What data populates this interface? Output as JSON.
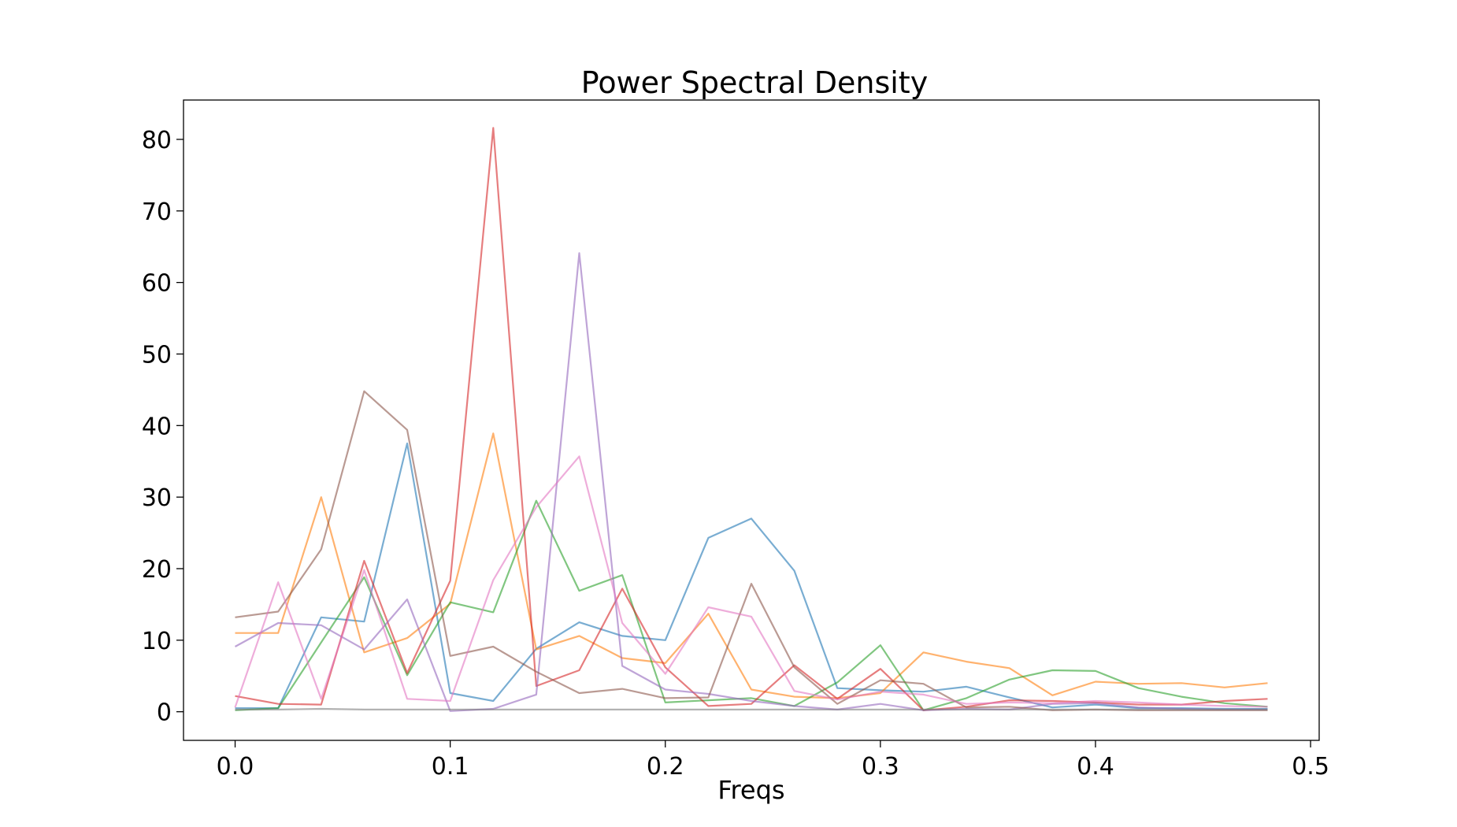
{
  "chart_data": {
    "type": "line",
    "title": "Power Spectral Density",
    "xlabel": "Freqs",
    "ylabel": "",
    "xlim": [
      -0.024,
      0.504
    ],
    "ylim": [
      -4,
      85.5
    ],
    "xticks": [
      {
        "value": 0.0,
        "label": "0.0"
      },
      {
        "value": 0.1,
        "label": "0.1"
      },
      {
        "value": 0.2,
        "label": "0.2"
      },
      {
        "value": 0.3,
        "label": "0.3"
      },
      {
        "value": 0.4,
        "label": "0.4"
      },
      {
        "value": 0.5,
        "label": "0.5"
      }
    ],
    "yticks": [
      {
        "value": 0,
        "label": "0"
      },
      {
        "value": 10,
        "label": "10"
      },
      {
        "value": 20,
        "label": "20"
      },
      {
        "value": 30,
        "label": "30"
      },
      {
        "value": 40,
        "label": "40"
      },
      {
        "value": 50,
        "label": "50"
      },
      {
        "value": 60,
        "label": "60"
      },
      {
        "value": 70,
        "label": "70"
      },
      {
        "value": 80,
        "label": "80"
      }
    ],
    "grid": false,
    "legend": "none",
    "x": [
      0.0,
      0.02,
      0.04,
      0.06,
      0.08,
      0.1,
      0.12,
      0.14,
      0.16,
      0.18,
      0.2,
      0.22,
      0.24,
      0.26,
      0.28,
      0.3,
      0.32,
      0.34,
      0.36,
      0.38,
      0.4,
      0.42,
      0.44,
      0.46,
      0.48
    ],
    "series": [
      {
        "color": "#1f77b4",
        "values": [
          0.5,
          0.5,
          13.2,
          12.6,
          37.5,
          2.6,
          1.5,
          8.8,
          12.5,
          10.6,
          10.0,
          24.3,
          27.0,
          19.7,
          3.3,
          3.0,
          2.8,
          3.5,
          2.0,
          0.6,
          1.0,
          0.5,
          0.5,
          0.4,
          0.4
        ]
      },
      {
        "color": "#ff7f0e",
        "values": [
          11.0,
          11.0,
          30.0,
          8.3,
          10.3,
          15.1,
          38.9,
          8.7,
          10.6,
          7.5,
          6.8,
          13.7,
          3.1,
          2.1,
          1.9,
          2.6,
          8.3,
          7.0,
          6.1,
          2.3,
          4.2,
          3.9,
          4.0,
          3.4,
          4.0
        ]
      },
      {
        "color": "#2ca02c",
        "values": [
          0.2,
          0.5,
          9.7,
          18.8,
          5.1,
          15.3,
          13.9,
          29.5,
          16.9,
          19.1,
          1.3,
          1.6,
          1.9,
          0.8,
          4.1,
          9.3,
          0.2,
          1.9,
          4.5,
          5.8,
          5.7,
          3.3,
          2.1,
          1.2,
          0.7
        ]
      },
      {
        "color": "#d62728",
        "values": [
          2.2,
          1.1,
          1.0,
          21.1,
          5.4,
          18.3,
          81.6,
          3.6,
          5.8,
          17.2,
          6.2,
          0.8,
          1.1,
          6.5,
          1.8,
          6.0,
          0.2,
          0.7,
          1.6,
          1.5,
          1.3,
          1.0,
          1.0,
          1.5,
          1.8
        ]
      },
      {
        "color": "#9467bd",
        "values": [
          9.1,
          12.4,
          12.1,
          8.7,
          15.7,
          0.1,
          0.4,
          2.4,
          64.1,
          6.4,
          3.1,
          2.5,
          1.5,
          0.8,
          0.3,
          1.1,
          0.2,
          0.4,
          0.3,
          1.1,
          1.2,
          0.6,
          0.4,
          0.3,
          0.3
        ]
      },
      {
        "color": "#8c564b",
        "values": [
          13.2,
          14.0,
          22.7,
          44.8,
          39.4,
          7.8,
          9.1,
          5.6,
          2.6,
          3.2,
          1.9,
          2.0,
          17.9,
          6.2,
          1.1,
          4.4,
          3.9,
          0.6,
          0.7,
          0.2,
          0.3,
          0.2,
          0.2,
          0.2,
          0.2
        ]
      },
      {
        "color": "#e377c2",
        "values": [
          0.6,
          18.1,
          1.8,
          19.8,
          1.8,
          1.5,
          18.4,
          28.6,
          35.7,
          12.4,
          5.3,
          14.6,
          13.3,
          2.9,
          1.7,
          2.8,
          2.4,
          1.1,
          1.3,
          1.2,
          1.5,
          1.3,
          1.0,
          0.8,
          0.7
        ]
      },
      {
        "color": "#7f7f7f",
        "values": [
          0.3,
          0.3,
          0.4,
          0.3,
          0.3,
          0.3,
          0.3,
          0.3,
          0.3,
          0.3,
          0.3,
          0.3,
          0.3,
          0.3,
          0.3,
          0.3,
          0.3,
          0.3,
          0.3,
          0.3,
          0.3,
          0.3,
          0.3,
          0.3,
          0.3
        ]
      }
    ]
  }
}
